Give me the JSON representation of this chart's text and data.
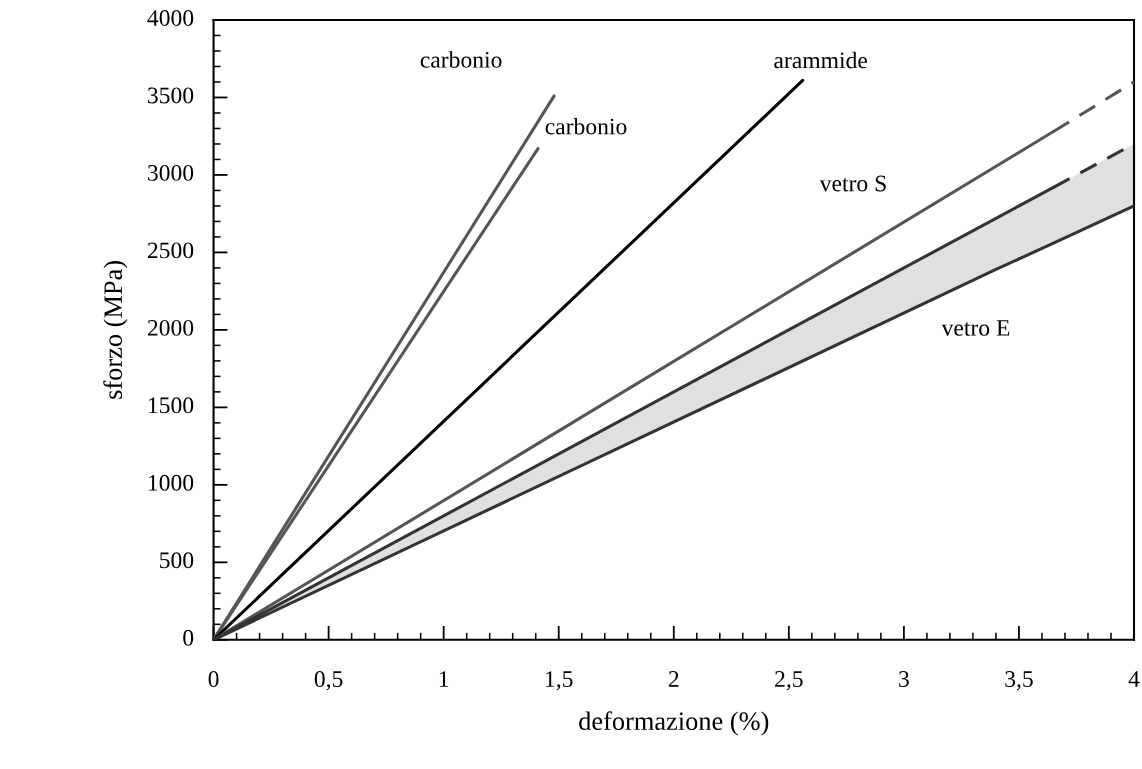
{
  "chart_data": {
    "type": "line",
    "xlabel": "deformazione (%)",
    "ylabel": "sforzo (MPa)",
    "xlim": [
      0,
      4
    ],
    "ylim": [
      0,
      4000
    ],
    "xticks": [
      0,
      {
        "value": 0.5,
        "label": "0,5"
      },
      1,
      {
        "value": 1.5,
        "label": "1,5"
      },
      2,
      {
        "value": 2.5,
        "label": "2,5"
      },
      3,
      {
        "value": 3.5,
        "label": "3,5"
      },
      4
    ],
    "yticks": [
      0,
      500,
      1000,
      1500,
      2000,
      2500,
      3000,
      3500,
      4000
    ],
    "grid": false,
    "legend": false,
    "marker": "none",
    "series": [
      {
        "name": "carbonio",
        "x": [
          0,
          1.48
        ],
        "values": [
          0,
          3510
        ],
        "color": "#555555",
        "line_style": "solid"
      },
      {
        "name": "carbonio",
        "x": [
          0,
          1.41
        ],
        "values": [
          0,
          3170
        ],
        "color": "#555555",
        "line_style": "solid"
      },
      {
        "name": "arammide",
        "x": [
          0,
          2.56
        ],
        "values": [
          0,
          3610
        ],
        "color": "#000000",
        "line_style": "solid"
      },
      {
        "name": "vetro S",
        "x": [
          0,
          3.65
        ],
        "values": [
          0,
          3280
        ],
        "color": "#555555",
        "line_style": "solid"
      },
      {
        "x": [
          3.65,
          4
        ],
        "values": [
          3280,
          3600
        ],
        "color": "#555555",
        "line_style": "dashed"
      },
      {
        "name": "vetro E",
        "x": [
          0,
          3.4,
          3.65,
          4
        ],
        "values": [
          0,
          2390,
          2560,
          2800
        ],
        "lower": [
          0,
          2390,
          2560,
          2800
        ],
        "upper": [
          0,
          2720,
          2920,
          3200
        ],
        "color": "#333333",
        "line_style": "solid"
      },
      {
        "x": [
          0,
          3.65
        ],
        "values": [
          0,
          2920
        ],
        "color": "#333333",
        "line_style": "solid"
      },
      {
        "x": [
          3.65,
          4
        ],
        "values": [
          2920,
          3200
        ],
        "color": "#333333",
        "line_style": "dashed"
      }
    ]
  }
}
